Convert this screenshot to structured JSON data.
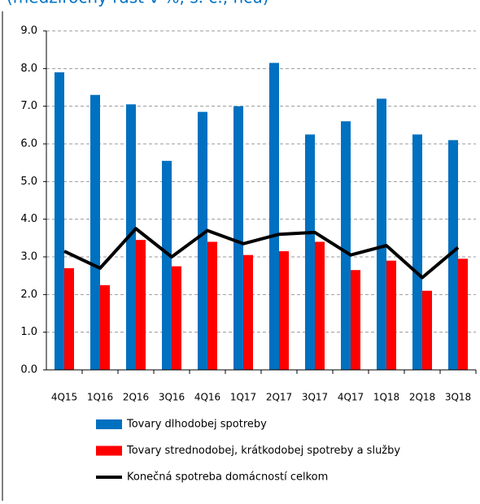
{
  "chart_data": {
    "type": "bar",
    "title": "(medziročný rast v %, s. c., ncú)",
    "categories": [
      "4Q15",
      "1Q16",
      "2Q16",
      "3Q16",
      "4Q16",
      "1Q17",
      "2Q17",
      "3Q17",
      "4Q17",
      "1Q18",
      "2Q18",
      "3Q18"
    ],
    "series": [
      {
        "name": "Tovary dlhodobej spotreby",
        "type": "bar",
        "color": "#0070c0",
        "values": [
          7.9,
          7.3,
          7.05,
          5.55,
          6.85,
          7.0,
          8.15,
          6.25,
          6.6,
          7.2,
          6.25,
          6.1
        ]
      },
      {
        "name": "Tovary strednodobej, krátkodobej spotreby a služby",
        "type": "bar",
        "color": "#ff0000",
        "values": [
          2.7,
          2.25,
          3.45,
          2.75,
          3.4,
          3.05,
          3.15,
          3.4,
          2.65,
          2.9,
          2.1,
          2.95
        ]
      },
      {
        "name": "Konečná spotreba domácností celkom",
        "type": "line",
        "color": "#000000",
        "values": [
          3.15,
          2.7,
          3.75,
          3.0,
          3.7,
          3.35,
          3.6,
          3.65,
          3.05,
          3.3,
          2.45,
          3.25
        ]
      }
    ],
    "ylim": [
      0,
      9
    ],
    "yticks": [
      {
        "value": 0,
        "label": "0.0"
      },
      {
        "value": 1,
        "label": "1.0"
      },
      {
        "value": 2,
        "label": "2.0"
      },
      {
        "value": 3,
        "label": "3.0"
      },
      {
        "value": 4,
        "label": "4.0"
      },
      {
        "value": 5,
        "label": "5.0"
      },
      {
        "value": 6,
        "label": "6.0"
      },
      {
        "value": 7,
        "label": "7.0"
      },
      {
        "value": 8,
        "label": "8.0"
      },
      {
        "value": 9,
        "label": "9.0"
      }
    ],
    "grid": true,
    "legend": "bottom"
  }
}
